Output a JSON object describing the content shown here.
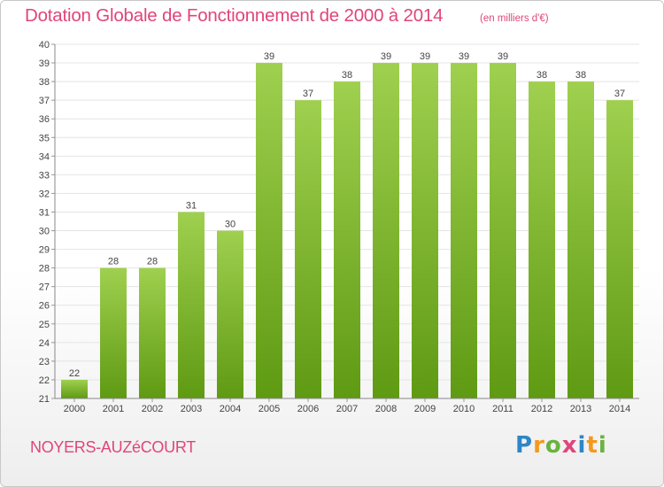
{
  "header": {
    "title": "Dotation Globale de Fonctionnement de 2000 à 2014",
    "unit": "(en milliers d'€)"
  },
  "footer": {
    "commune": "NOYERS-AUZéCOURT",
    "logo": {
      "letters": [
        "P",
        "r",
        "o",
        "x",
        "i",
        "t",
        "i"
      ],
      "colors": [
        "#2e86c8",
        "#f39a1e",
        "#69b33f",
        "#e0457b",
        "#2e86c8",
        "#f39a1e",
        "#69b33f"
      ]
    }
  },
  "colors": {
    "accent": "#e0457b",
    "bar_top": "#9fd04f",
    "bar_bottom": "#5f9a13",
    "grid": "#e4e4e4"
  },
  "chart_data": {
    "type": "bar",
    "categories": [
      "2000",
      "2001",
      "2002",
      "2003",
      "2004",
      "2005",
      "2006",
      "2007",
      "2008",
      "2009",
      "2010",
      "2011",
      "2012",
      "2013",
      "2014"
    ],
    "values": [
      22,
      28,
      28,
      31,
      30,
      39,
      37,
      38,
      39,
      39,
      39,
      39,
      38,
      38,
      37
    ],
    "ylim": [
      21,
      40
    ],
    "yticks": [
      21,
      22,
      23,
      24,
      25,
      26,
      27,
      28,
      29,
      30,
      31,
      32,
      33,
      34,
      35,
      36,
      37,
      38,
      39,
      40
    ],
    "grid": true,
    "data_labels": true
  }
}
